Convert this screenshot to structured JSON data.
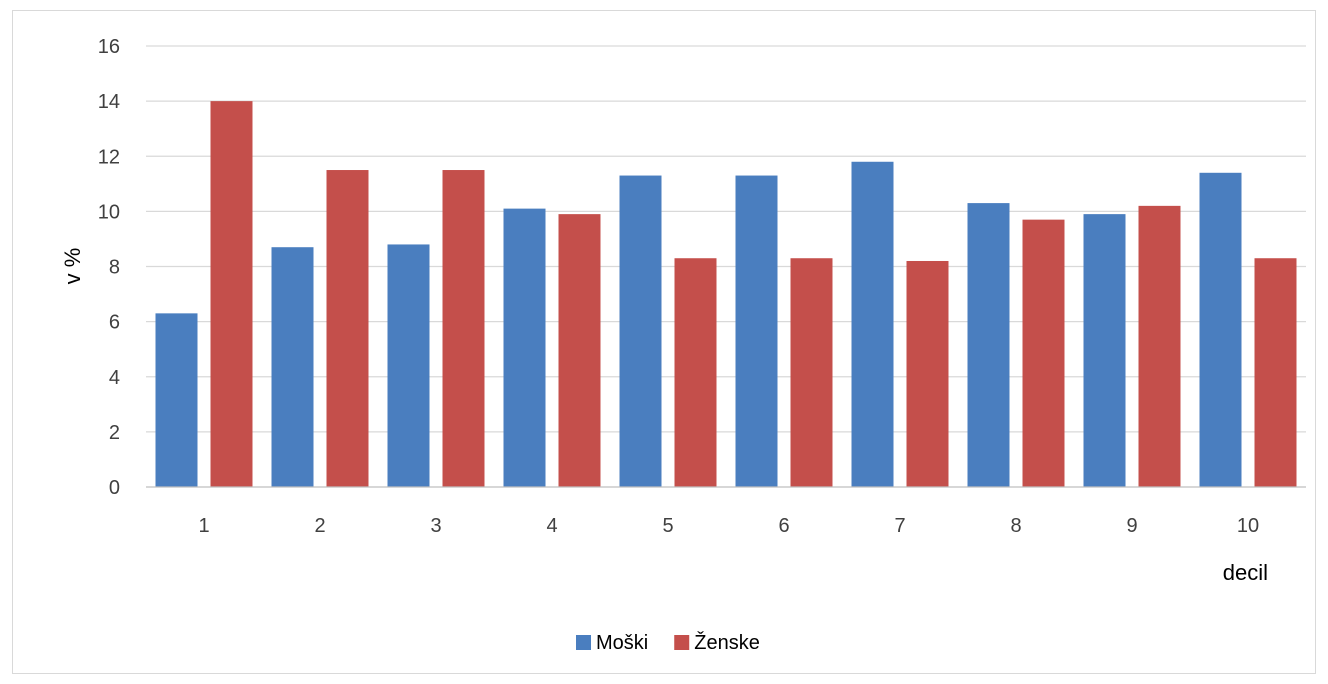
{
  "chart_data": {
    "type": "bar",
    "categories": [
      "1",
      "2",
      "3",
      "4",
      "5",
      "6",
      "7",
      "8",
      "9",
      "10"
    ],
    "series": [
      {
        "name": "Moški",
        "color": "#4a7ebf",
        "values": [
          6.3,
          8.7,
          8.8,
          10.1,
          11.3,
          11.3,
          11.8,
          10.3,
          9.9,
          11.4
        ]
      },
      {
        "name": "Ženske",
        "color": "#c44f4b",
        "values": [
          14.0,
          11.5,
          11.5,
          9.9,
          8.3,
          8.3,
          8.2,
          9.7,
          10.2,
          8.3
        ]
      }
    ],
    "xlabel": "decil",
    "ylabel": "v %",
    "ylim": [
      0,
      16
    ],
    "yticks": [
      0,
      2,
      4,
      6,
      8,
      10,
      12,
      14,
      16
    ],
    "grid": true,
    "legend": "bottom-center"
  }
}
